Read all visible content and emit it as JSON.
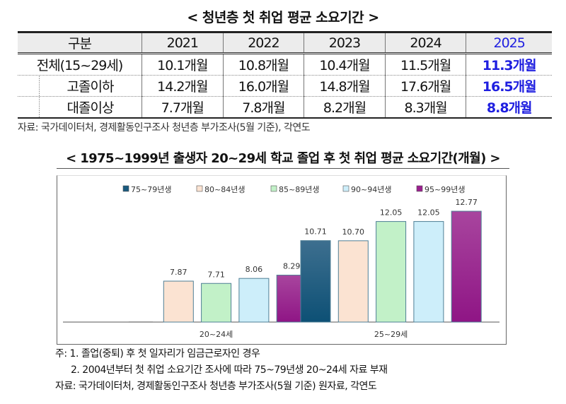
{
  "table": {
    "title": "< 청년층 첫 취업 평균 소요기간 >",
    "headers": [
      "구분",
      "2021",
      "2022",
      "2023",
      "2024",
      "2025"
    ],
    "rows": [
      {
        "label": "전체(15~29세)",
        "values": [
          "10.1개월",
          "10.8개월",
          "10.4개월",
          "11.5개월",
          "11.3개월"
        ]
      },
      {
        "label": "고졸이하",
        "values": [
          "14.2개월",
          "16.0개월",
          "14.8개월",
          "17.6개월",
          "16.5개월"
        ]
      },
      {
        "label": "대졸이상",
        "values": [
          "7.7개월",
          "7.8개월",
          "8.2개월",
          "8.3개월",
          "8.8개월"
        ]
      }
    ],
    "highlight_color": "#1f1fe0",
    "source": "자료: 국가데이터처, 경제활동인구조사 청년층 부가조사(5월 기준), 각연도"
  },
  "chart_data": {
    "type": "bar",
    "title": "< 1975~1999년 출생자 20~29세 학교 졸업 후 첫 취업 평균 소요기간(개월) >",
    "categories": [
      "20~24세",
      "25~29세"
    ],
    "series": [
      {
        "name": "75~79년생",
        "values": [
          null,
          10.71
        ],
        "color": "#1a5a7e"
      },
      {
        "name": "80~84년생",
        "values": [
          7.87,
          10.7
        ],
        "color": "#fbe3d2"
      },
      {
        "name": "85~89년생",
        "values": [
          7.71,
          12.05
        ],
        "color": "#c2f1c8"
      },
      {
        "name": "90~94년생",
        "values": [
          8.06,
          12.05
        ],
        "color": "#cdeefa"
      },
      {
        "name": "95~99년생",
        "values": [
          8.29,
          12.77
        ],
        "color": "#9b1f8e"
      }
    ],
    "labels": [
      [
        "",
        "10.71"
      ],
      [
        "7.87",
        "10.70"
      ],
      [
        "7.71",
        "12.05"
      ],
      [
        "8.06",
        "12.05"
      ],
      [
        "8.29",
        "12.77"
      ]
    ],
    "ylim": [
      5,
      14
    ],
    "grid": false,
    "legend": "top",
    "notes": [
      "주: 1. 졸업(중퇴) 후 첫 일자리가 임금근로자인 경우",
      "2. 2004년부터 첫 취업 소요기간 조사에 따라 75~79년생 20~24세 자료 부재",
      "자료: 국가데이터처, 경제활동인구조사 청년층 부가조사(5월 기준) 원자료, 각연도"
    ]
  }
}
